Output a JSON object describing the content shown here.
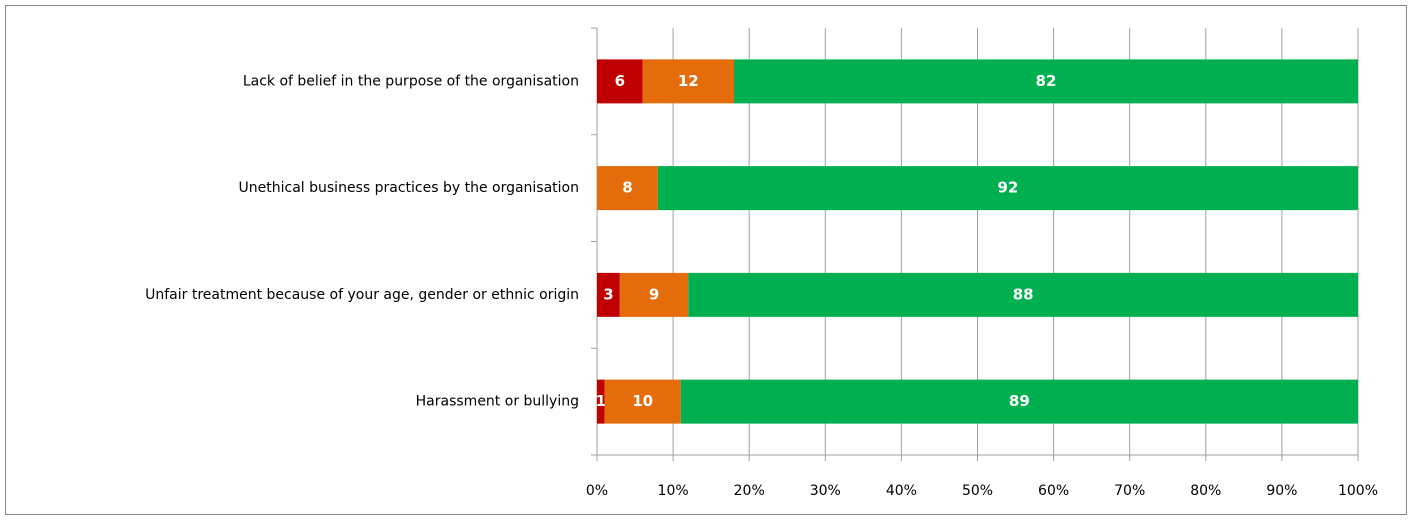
{
  "chart_data": {
    "type": "stacked-bar-horizontal",
    "categories": [
      "Lack of belief in the purpose of the organisation",
      "Unethical business practices by the organisation",
      "Unfair treatment because of your age, gender or ethnic origin",
      "Harassment or bullying"
    ],
    "series": [
      {
        "color": "#c00000",
        "values": [
          6,
          null,
          3,
          1
        ]
      },
      {
        "color": "#e46c0a",
        "values": [
          12,
          8,
          9,
          10
        ]
      },
      {
        "color": "#00b050",
        "values": [
          82,
          92,
          88,
          89
        ]
      }
    ],
    "xlim": [
      0,
      100
    ],
    "xticks": [
      {
        "value": 0,
        "label": "0%"
      },
      {
        "value": 10,
        "label": "10%"
      },
      {
        "value": 20,
        "label": "20%"
      },
      {
        "value": 30,
        "label": "30%"
      },
      {
        "value": 40,
        "label": "40%"
      },
      {
        "value": 50,
        "label": "50%"
      },
      {
        "value": 60,
        "label": "60%"
      },
      {
        "value": 70,
        "label": "70%"
      },
      {
        "value": 80,
        "label": "80%"
      },
      {
        "value": 90,
        "label": "90%"
      },
      {
        "value": 100,
        "label": "100%"
      }
    ],
    "grid": true
  }
}
